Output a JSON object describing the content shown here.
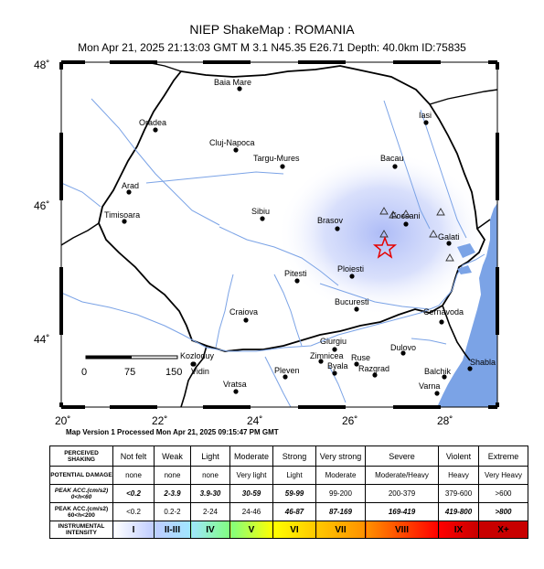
{
  "header": {
    "title": "NIEP ShakeMap : ROMANIA",
    "subtitle": "Mon Apr 21, 2025 21:13:03 GMT   M 3.1   N45.35 E26.71   Depth: 40.0km   ID:75835"
  },
  "map": {
    "lat_labels": [
      "48˚",
      "46˚",
      "44˚"
    ],
    "lon_labels": [
      "20˚",
      "22˚",
      "24˚",
      "26˚",
      "28˚"
    ],
    "scale": {
      "labels": [
        "0",
        "75",
        "150"
      ]
    },
    "cities": [
      {
        "name": "Baia Mare"
      },
      {
        "name": "Oradea"
      },
      {
        "name": "Iasi"
      },
      {
        "name": "Cluj-Napoca"
      },
      {
        "name": "Targu-Mures"
      },
      {
        "name": "Bacau"
      },
      {
        "name": "Arad"
      },
      {
        "name": "Timisoara"
      },
      {
        "name": "Sibiu"
      },
      {
        "name": "Brasov"
      },
      {
        "name": "Focsani"
      },
      {
        "name": "Galati"
      },
      {
        "name": "Ploiesti"
      },
      {
        "name": "Pitesti"
      },
      {
        "name": "Bucuresti"
      },
      {
        "name": "Craiova"
      },
      {
        "name": "Cernavoda"
      },
      {
        "name": "Giurgiu"
      },
      {
        "name": "Kozloduy"
      },
      {
        "name": "Zimnicea"
      },
      {
        "name": "Ruse"
      },
      {
        "name": "Dulovo"
      },
      {
        "name": "Vidin"
      },
      {
        "name": "Pleven"
      },
      {
        "name": "Byala"
      },
      {
        "name": "Razgrad"
      },
      {
        "name": "Shabla"
      },
      {
        "name": "Balchik"
      },
      {
        "name": "Vratsa"
      },
      {
        "name": "Varna"
      }
    ],
    "colors": {
      "sea": "#7ba3e6",
      "epicenter": "#e60000",
      "shaking": "#b8c6f8"
    }
  },
  "footer": {
    "text": "Map Version 1 Processed Mon Apr 21, 2025 09:15:47 PM GMT"
  },
  "legend": {
    "rows": {
      "perceived": "PERCEIVED SHAKING",
      "damage": "POTENTIAL DAMAGE",
      "acc_a": "PEAK ACC.(cm/s2) 0<h<60",
      "acc_b": "PEAK ACC.(cm/s2) 60<h<200",
      "intensity": "INSTRUMENTAL INTENSITY"
    },
    "shaking": [
      "Not felt",
      "Weak",
      "Light",
      "Moderate",
      "Strong",
      "Very strong",
      "Severe",
      "Violent",
      "Extreme"
    ],
    "damage": [
      "none",
      "none",
      "none",
      "Very light",
      "Light",
      "Moderate",
      "Moderate/Heavy",
      "Heavy",
      "Very Heavy"
    ],
    "acc_a": [
      "<0.2",
      "2-3.9",
      "3.9-30",
      "30-59",
      "59-99",
      "99-200",
      "200-379",
      "379-600",
      ">600"
    ],
    "acc_b": [
      "<0.2",
      "0.2-2",
      "2-24",
      "24-46",
      "46-87",
      "87-169",
      "169-419",
      "419-800",
      ">800"
    ],
    "intensity": [
      "I",
      "II-III",
      "IV",
      "V",
      "VI",
      "VII",
      "VIII",
      "IX",
      "X+"
    ],
    "intensity_colors": [
      "#ffffff",
      "#bfccff",
      "#a0e6ff",
      "#80ff80",
      "#ffff00",
      "#ffc800",
      "#ff9100",
      "#ff0000",
      "#c80000"
    ]
  }
}
